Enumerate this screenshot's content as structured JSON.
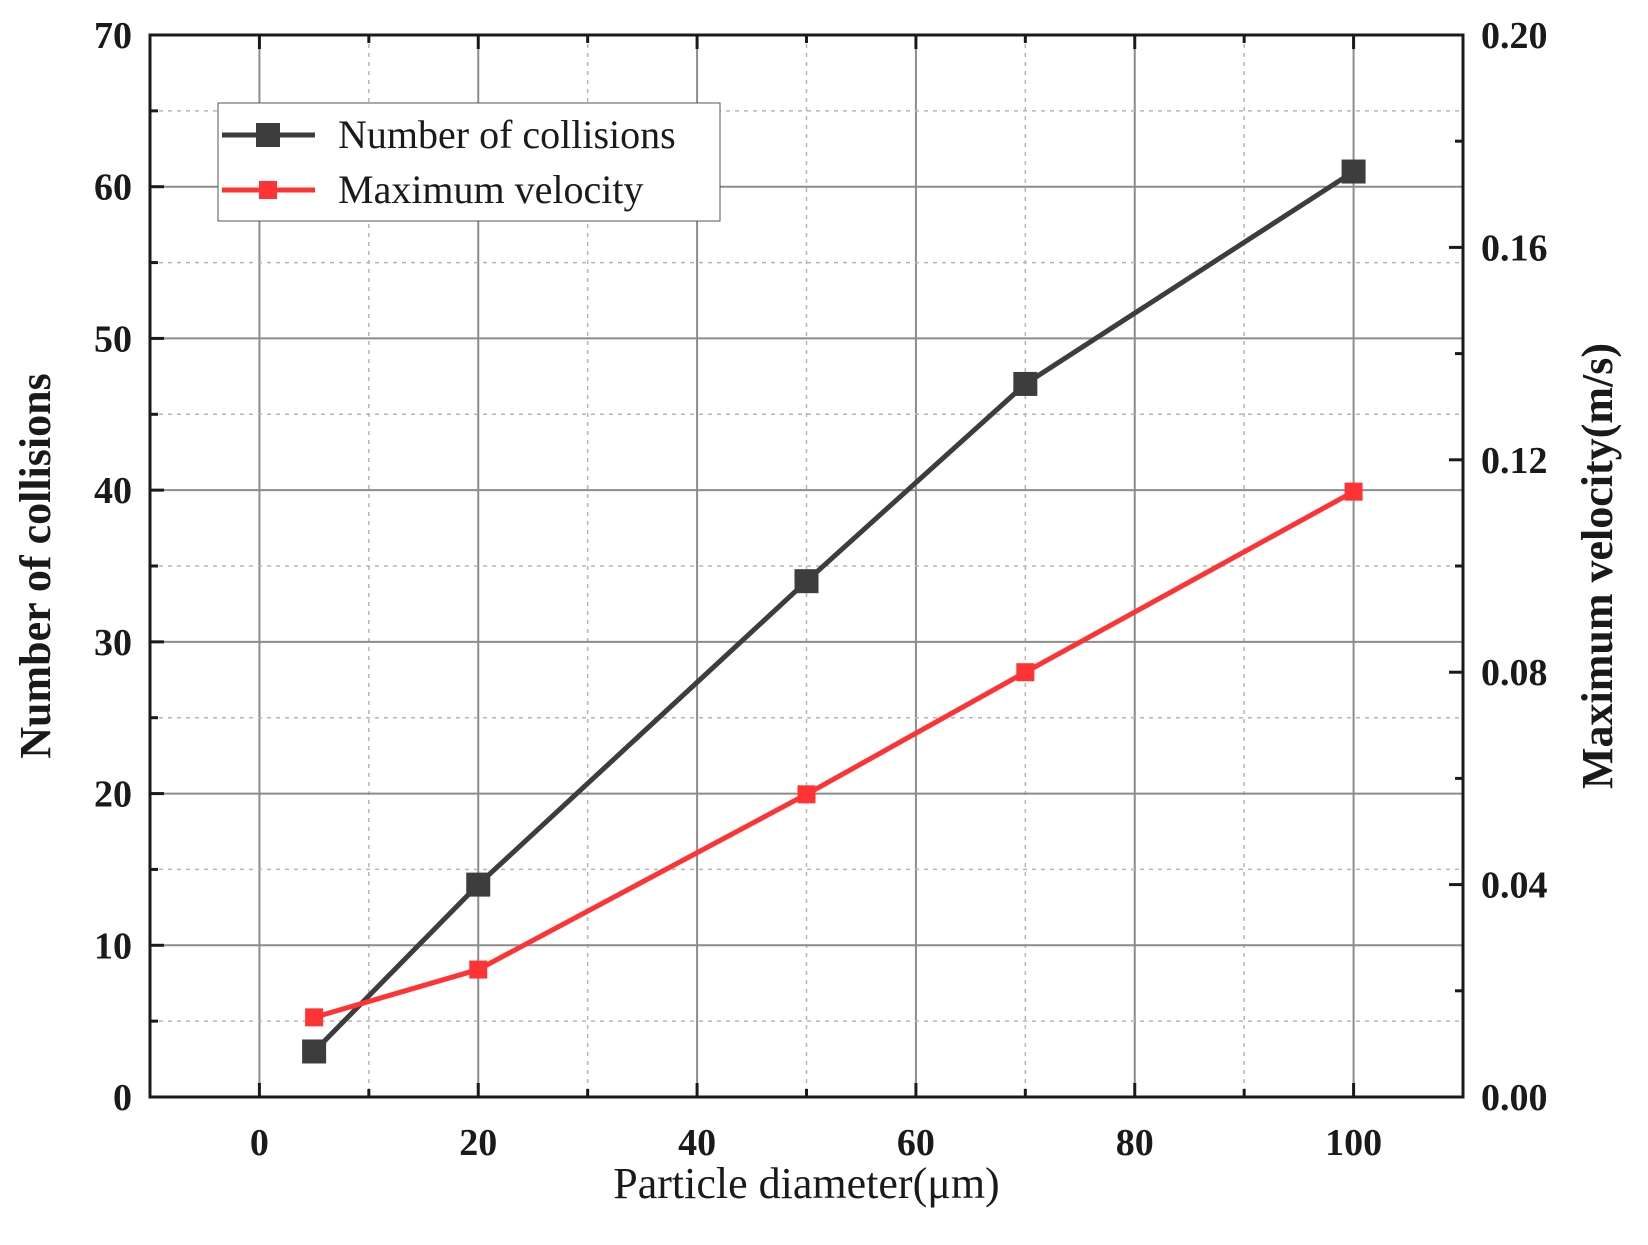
{
  "chart_data": {
    "type": "line",
    "xlabel": "Particle diameter(μm)",
    "ylabel": "Number of collisions",
    "y2label": "Maximum velocity(m/s)",
    "xlim": [
      -10,
      110
    ],
    "ylim": [
      0,
      70
    ],
    "y2lim": [
      0,
      0.2
    ],
    "x_ticks": [
      0,
      20,
      40,
      60,
      80,
      100
    ],
    "y_ticks": [
      0,
      10,
      20,
      30,
      40,
      50,
      60,
      70
    ],
    "y2_ticks": [
      "0.00",
      "0.04",
      "0.08",
      "0.12",
      "0.16",
      "0.20"
    ],
    "grid": true,
    "legend_position": "top-left",
    "series": [
      {
        "name": "Number of collisions",
        "axis": "left",
        "color": "#3d3d3d",
        "marker": "square",
        "x": [
          5,
          20,
          50,
          70,
          100
        ],
        "values": [
          3,
          14,
          34,
          47,
          61
        ]
      },
      {
        "name": "Maximum velocity",
        "axis": "right",
        "color": "#ff3333",
        "marker": "square",
        "x": [
          5,
          20,
          50,
          70,
          100
        ],
        "values": [
          0.015,
          0.024,
          0.057,
          0.08,
          0.114
        ]
      }
    ]
  }
}
